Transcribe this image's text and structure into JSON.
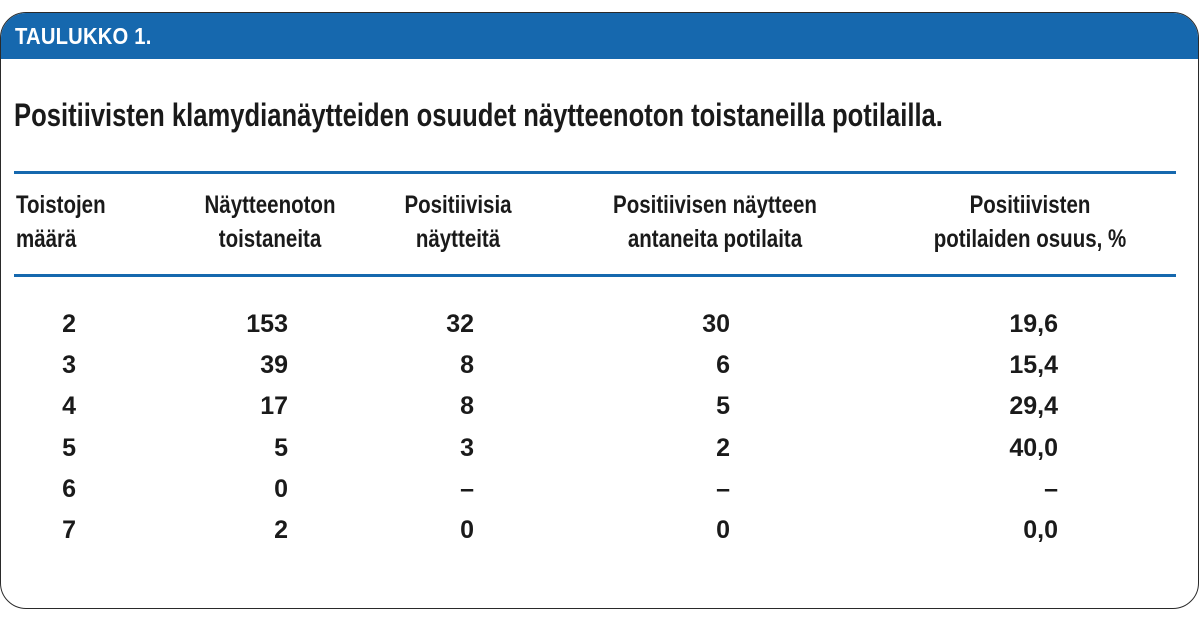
{
  "table_label": "TAULUKKO 1.",
  "title": "Positiivisten klamydianäytteiden osuudet näytteenoton toistaneilla potilailla.",
  "columns": [
    {
      "line1": "Toistojen",
      "line2": "määrä"
    },
    {
      "line1": "Näytteenoton",
      "line2": "toistaneita"
    },
    {
      "line1": "Positiivisia",
      "line2": "näytteitä"
    },
    {
      "line1": "Positiivisen näytteen",
      "line2": "antaneita potilaita"
    },
    {
      "line1": "Positiivisten",
      "line2": "potilaiden osuus, %"
    }
  ],
  "rows": [
    [
      "2",
      "153",
      "32",
      "30",
      "19,6"
    ],
    [
      "3",
      "39",
      "8",
      "6",
      "15,4"
    ],
    [
      "4",
      "17",
      "8",
      "5",
      "29,4"
    ],
    [
      "5",
      "5",
      "3",
      "2",
      "40,0"
    ],
    [
      "6",
      "0",
      "–",
      "–",
      "–"
    ],
    [
      "7",
      "2",
      "0",
      "0",
      "0,0"
    ]
  ],
  "colors": {
    "accent": "#1668ae",
    "text": "#1a1a1a",
    "border": "#2a2a2a"
  }
}
